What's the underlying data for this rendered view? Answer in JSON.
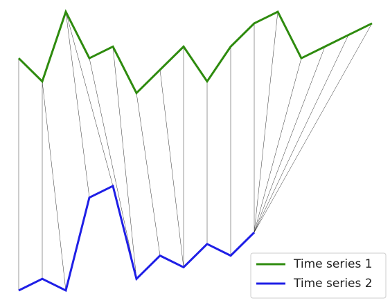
{
  "chart_data": {
    "type": "alignment",
    "series": [
      {
        "name": "Time series 1",
        "color": "#2e8b0e",
        "values": [
          21,
          19,
          25,
          21,
          22,
          18,
          20,
          22,
          19,
          22,
          24,
          25,
          21,
          22,
          23,
          24
        ]
      },
      {
        "name": "Time series 2",
        "color": "#1f1fe6",
        "values": [
          1,
          2,
          1,
          9,
          10,
          2,
          4,
          3,
          5,
          4,
          6
        ]
      }
    ],
    "alignment": [
      [
        0,
        0
      ],
      [
        1,
        1
      ],
      [
        1,
        2
      ],
      [
        2,
        3
      ],
      [
        2,
        4
      ],
      [
        3,
        5
      ],
      [
        4,
        5
      ],
      [
        5,
        6
      ],
      [
        6,
        7
      ],
      [
        7,
        7
      ],
      [
        8,
        8
      ],
      [
        9,
        9
      ],
      [
        10,
        10
      ],
      [
        11,
        10
      ],
      [
        12,
        10
      ],
      [
        13,
        10
      ],
      [
        14,
        10
      ],
      [
        15,
        10
      ]
    ],
    "legend": "lower right"
  }
}
